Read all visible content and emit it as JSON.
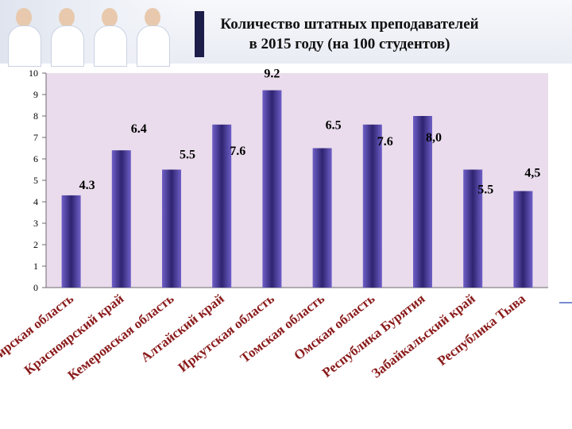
{
  "chart_data": {
    "type": "bar",
    "title": "Количество штатных преподавателей\nв 2015 году (на 100 студентов)",
    "categories": [
      "Новосибирская область",
      "Красноярский край",
      "Кемеровская область",
      "Алтайский край",
      "Иркутская область",
      "Томская область",
      "Омская область",
      "Республика Бурятия",
      "Забайкальский край",
      "Республика Тыва"
    ],
    "values": [
      4.3,
      6.4,
      5.5,
      7.6,
      9.2,
      6.5,
      7.6,
      8.0,
      5.5,
      4.5
    ],
    "data_labels": [
      "4.3",
      "6.4",
      "5.5",
      "7.6",
      "9.2",
      "6.5",
      "7.6",
      "8,0",
      "5.5",
      "4,5"
    ],
    "y_ticks": [
      "0",
      "1",
      "2",
      "3",
      "4",
      "5",
      "6",
      "7",
      "8",
      "9",
      "10"
    ],
    "ylim": [
      0,
      10
    ],
    "grid": false,
    "legend": "none",
    "colors": {
      "plot_background": "#eadcec",
      "bar_edge": "#6f5fc8",
      "bar_center": "#2e2470",
      "axis": "#6b6b6b"
    }
  }
}
